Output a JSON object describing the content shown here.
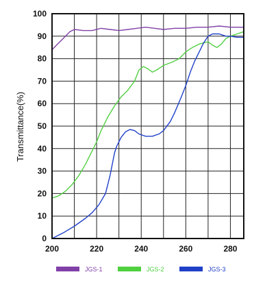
{
  "chart_data": {
    "type": "line",
    "title": "",
    "xlabel": "",
    "ylabel": "Transmittance(%)",
    "xlim": [
      200,
      286
    ],
    "ylim": [
      0,
      100
    ],
    "x_ticks": [
      "200",
      "220",
      "240",
      "260",
      "280"
    ],
    "y_ticks": [
      "0",
      "10",
      "20",
      "30",
      "40",
      "50",
      "60",
      "70",
      "80",
      "90",
      "100"
    ],
    "x_grid": [
      200,
      210,
      220,
      230,
      240,
      250,
      260,
      270,
      280
    ],
    "y_grid": [
      0,
      10,
      20,
      30,
      40,
      50,
      60,
      70,
      80,
      90,
      100
    ],
    "grid": true,
    "legend_position": "bottom",
    "series": [
      {
        "name": "JGS-1",
        "color": "#8040a8",
        "points": [
          [
            200,
            84
          ],
          [
            202,
            86
          ],
          [
            205,
            89
          ],
          [
            208,
            92
          ],
          [
            210,
            93
          ],
          [
            214,
            92.5
          ],
          [
            218,
            92.5
          ],
          [
            222,
            93.5
          ],
          [
            226,
            93
          ],
          [
            230,
            92.5
          ],
          [
            234,
            93
          ],
          [
            238,
            93.5
          ],
          [
            242,
            94
          ],
          [
            246,
            93.5
          ],
          [
            250,
            93
          ],
          [
            255,
            93.5
          ],
          [
            260,
            93.5
          ],
          [
            265,
            94
          ],
          [
            270,
            94
          ],
          [
            275,
            94.5
          ],
          [
            280,
            94
          ],
          [
            284,
            94
          ],
          [
            286,
            94
          ]
        ]
      },
      {
        "name": "JGS-2",
        "color": "#50d040",
        "points": [
          [
            200,
            18
          ],
          [
            203,
            19
          ],
          [
            206,
            21
          ],
          [
            209,
            24
          ],
          [
            212,
            28
          ],
          [
            215,
            33
          ],
          [
            218,
            39
          ],
          [
            220,
            43
          ],
          [
            222,
            48
          ],
          [
            225,
            54
          ],
          [
            228,
            59
          ],
          [
            231,
            63
          ],
          [
            234,
            66
          ],
          [
            237,
            70
          ],
          [
            239,
            75
          ],
          [
            241,
            76.5
          ],
          [
            243,
            75.5
          ],
          [
            245,
            74
          ],
          [
            247,
            75
          ],
          [
            250,
            77
          ],
          [
            254,
            78.5
          ],
          [
            257,
            80
          ],
          [
            260,
            83
          ],
          [
            263,
            85
          ],
          [
            266,
            86.5
          ],
          [
            268,
            87
          ],
          [
            270,
            87.5
          ],
          [
            272,
            86
          ],
          [
            274,
            85
          ],
          [
            276,
            86.5
          ],
          [
            278,
            89
          ],
          [
            280,
            90
          ],
          [
            283,
            91
          ],
          [
            286,
            92
          ]
        ]
      },
      {
        "name": "JGS-3",
        "color": "#2040c8",
        "points": [
          [
            200,
            0
          ],
          [
            205,
            2.5
          ],
          [
            210,
            5.5
          ],
          [
            215,
            9
          ],
          [
            218,
            11.5
          ],
          [
            221,
            15
          ],
          [
            224,
            20
          ],
          [
            226,
            28
          ],
          [
            228,
            38
          ],
          [
            229,
            41
          ],
          [
            231,
            45
          ],
          [
            233,
            47.5
          ],
          [
            235,
            48.5
          ],
          [
            237,
            48
          ],
          [
            239,
            46.5
          ],
          [
            242,
            45.5
          ],
          [
            245,
            45.5
          ],
          [
            248,
            46.5
          ],
          [
            250,
            48
          ],
          [
            253,
            52
          ],
          [
            255,
            56
          ],
          [
            258,
            63
          ],
          [
            260,
            68
          ],
          [
            262,
            74
          ],
          [
            264,
            79
          ],
          [
            266,
            83
          ],
          [
            268,
            87
          ],
          [
            270,
            90
          ],
          [
            272,
            91
          ],
          [
            275,
            91
          ],
          [
            278,
            90
          ],
          [
            280,
            90
          ],
          [
            283,
            89.5
          ],
          [
            286,
            89.5
          ]
        ]
      }
    ]
  }
}
